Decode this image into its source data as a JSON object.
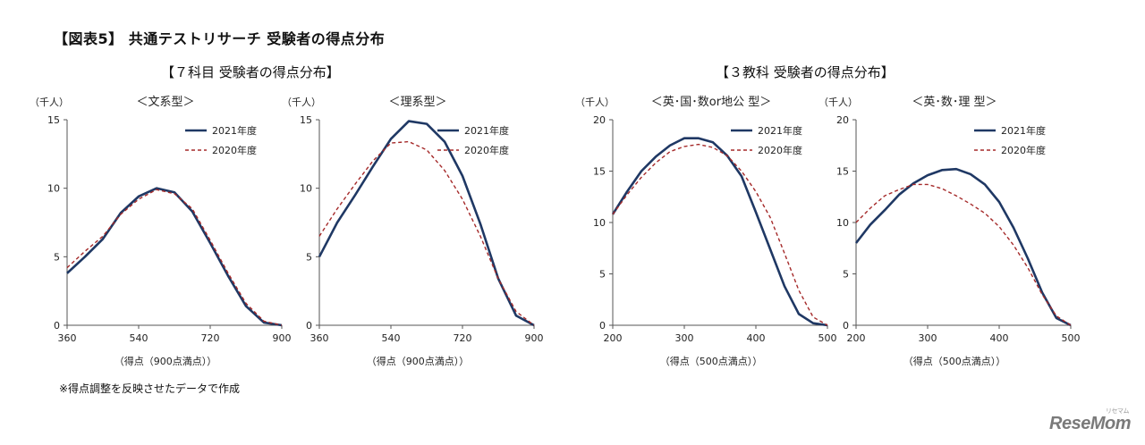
{
  "figure_title": "【図表5】 共通テストリサーチ  受験者の得点分布",
  "group_titles": [
    "【７科目  受験者の得点分布】",
    "【３教科  受験者の得点分布】"
  ],
  "note": "※得点調整を反映させたデータで作成",
  "logo": {
    "main": "ReseMom",
    "sub": "リセマム"
  },
  "colors": {
    "series_2021": "#1f3864",
    "series_2020": "#a52a2a",
    "axis": "#555555"
  },
  "chart_data": [
    {
      "type": "line",
      "title": "＜文系型＞",
      "ylabel": "（千人）",
      "xlabel": "（得点（900点満点））",
      "xlim": [
        360,
        900
      ],
      "ylim": [
        0,
        15
      ],
      "xticks": [
        360,
        540,
        720,
        900
      ],
      "yticks": [
        0,
        5,
        10,
        15
      ],
      "legend": "top-right",
      "x": [
        360,
        405,
        450,
        495,
        540,
        585,
        630,
        675,
        720,
        765,
        810,
        855,
        900
      ],
      "series": [
        {
          "name": "2021年度",
          "style": "solid",
          "values": [
            3.8,
            5.0,
            6.3,
            8.2,
            9.4,
            10.0,
            9.7,
            8.3,
            6.0,
            3.6,
            1.4,
            0.2,
            0.0
          ]
        },
        {
          "name": "2020年度",
          "style": "dashed",
          "values": [
            4.2,
            5.4,
            6.5,
            8.1,
            9.2,
            9.9,
            9.6,
            8.5,
            6.2,
            3.8,
            1.6,
            0.3,
            0.0
          ]
        }
      ]
    },
    {
      "type": "line",
      "title": "＜理系型＞",
      "ylabel": "（千人）",
      "xlabel": "（得点（900点満点））",
      "xlim": [
        360,
        900
      ],
      "ylim": [
        0,
        15
      ],
      "xticks": [
        360,
        540,
        720,
        900
      ],
      "yticks": [
        0,
        5,
        10,
        15
      ],
      "legend": "top-right",
      "x": [
        360,
        405,
        450,
        495,
        540,
        585,
        630,
        675,
        720,
        765,
        810,
        855,
        900
      ],
      "series": [
        {
          "name": "2021年度",
          "style": "solid",
          "values": [
            5.0,
            7.5,
            9.5,
            11.6,
            13.6,
            14.9,
            14.7,
            13.4,
            10.9,
            7.4,
            3.4,
            0.7,
            0.0
          ]
        },
        {
          "name": "2020年度",
          "style": "dashed",
          "values": [
            6.5,
            8.5,
            10.3,
            12.0,
            13.3,
            13.4,
            12.8,
            11.3,
            9.2,
            6.5,
            3.4,
            1.0,
            0.0
          ]
        }
      ]
    },
    {
      "type": "line",
      "title": "＜英･国･数or地公 型＞",
      "ylabel": "（千人）",
      "xlabel": "（得点（500点満点））",
      "xlim": [
        200,
        500
      ],
      "ylim": [
        0,
        20
      ],
      "xticks": [
        200,
        300,
        400,
        500
      ],
      "yticks": [
        0,
        5,
        10,
        15,
        20
      ],
      "legend": "top-right",
      "x": [
        200,
        220,
        240,
        260,
        280,
        300,
        320,
        340,
        360,
        380,
        400,
        420,
        440,
        460,
        480,
        500
      ],
      "series": [
        {
          "name": "2021年度",
          "style": "solid",
          "values": [
            10.8,
            13.0,
            15.0,
            16.4,
            17.5,
            18.2,
            18.2,
            17.8,
            16.5,
            14.5,
            11.0,
            7.4,
            3.8,
            1.1,
            0.2,
            0.0
          ]
        },
        {
          "name": "2020年度",
          "style": "dashed",
          "values": [
            10.8,
            12.7,
            14.4,
            15.8,
            16.9,
            17.4,
            17.6,
            17.3,
            16.5,
            15.0,
            13.0,
            10.5,
            7.0,
            3.4,
            0.8,
            0.0
          ]
        }
      ]
    },
    {
      "type": "line",
      "title": "＜英･数･理 型＞",
      "ylabel": "（千人）",
      "xlabel": "（得点（500点満点））",
      "xlim": [
        200,
        500
      ],
      "ylim": [
        0,
        20
      ],
      "xticks": [
        200,
        300,
        400,
        500
      ],
      "yticks": [
        0,
        5,
        10,
        15,
        20
      ],
      "legend": "top-right",
      "x": [
        200,
        220,
        240,
        260,
        280,
        300,
        320,
        340,
        360,
        380,
        400,
        420,
        440,
        460,
        480,
        500
      ],
      "series": [
        {
          "name": "2021年度",
          "style": "solid",
          "values": [
            8.0,
            9.8,
            11.2,
            12.7,
            13.8,
            14.6,
            15.1,
            15.2,
            14.7,
            13.7,
            12.0,
            9.5,
            6.5,
            3.2,
            0.7,
            0.0
          ]
        },
        {
          "name": "2020年度",
          "style": "dashed",
          "values": [
            10.0,
            11.4,
            12.6,
            13.2,
            13.7,
            13.7,
            13.3,
            12.6,
            11.8,
            10.9,
            9.6,
            7.8,
            5.6,
            3.0,
            0.9,
            0.0
          ]
        }
      ]
    }
  ]
}
